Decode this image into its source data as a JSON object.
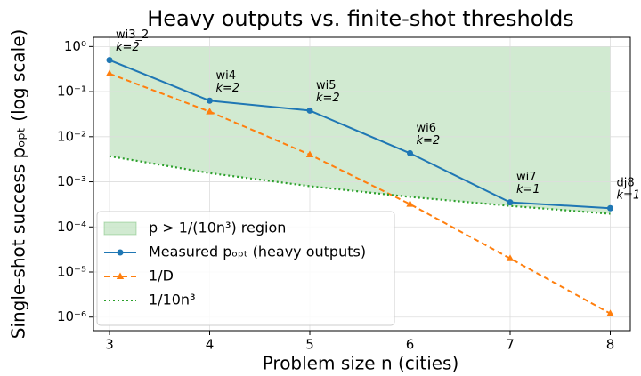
{
  "chart_data": {
    "type": "line",
    "title": "Heavy outputs vs. finite-shot thresholds",
    "xlabel": "Problem size n (cities)",
    "ylabel": "Single-shot success pₒₚₜ (log scale)",
    "x": [
      3,
      4,
      5,
      6,
      7,
      8
    ],
    "xlim": [
      2.84,
      8.2
    ],
    "xticks": [
      3,
      4,
      5,
      6,
      7,
      8
    ],
    "ylim": [
      5e-07,
      1.6
    ],
    "log_y": true,
    "grid": true,
    "legend": "lower left",
    "yticks": [
      {
        "value": 1,
        "label": "10⁰"
      },
      {
        "value": 0.1,
        "label": "10⁻¹"
      },
      {
        "value": 0.01,
        "label": "10⁻²"
      },
      {
        "value": 0.001,
        "label": "10⁻³"
      },
      {
        "value": 0.0001,
        "label": "10⁻⁴"
      },
      {
        "value": 1e-05,
        "label": "10⁻⁵"
      },
      {
        "value": 1e-06,
        "label": "10⁻⁶"
      }
    ],
    "region": {
      "name": "p > 1/(10n³) region",
      "color": "#2ca02c",
      "upper": 1
    },
    "series": [
      {
        "name": "Measured pₒₚₜ (heavy outputs)",
        "color": "#1f77b4",
        "style": "solid",
        "marker": "circle",
        "values": [
          0.5,
          0.063,
          0.038,
          0.0043,
          0.00035,
          0.00026
        ]
      },
      {
        "name": "1/D",
        "color": "#ff7f0e",
        "style": "dashed",
        "marker": "triangle",
        "values": [
          0.25,
          0.036,
          0.004,
          0.00032,
          2e-05,
          1.2e-06
        ]
      },
      {
        "name": "1/10n³",
        "color": "#2ca02c",
        "style": "dotted",
        "marker": "none",
        "values": [
          0.0037,
          0.00156,
          0.0008,
          0.000463,
          0.000292,
          0.000195
        ]
      }
    ],
    "annotations": [
      {
        "label": "wi3_2",
        "k": "k=2"
      },
      {
        "label": "wi4",
        "k": "k=2"
      },
      {
        "label": "wi5",
        "k": "k=2"
      },
      {
        "label": "wi6",
        "k": "k=2"
      },
      {
        "label": "wi7",
        "k": "k=1"
      },
      {
        "label": "dj8",
        "k": "k=1"
      }
    ]
  }
}
